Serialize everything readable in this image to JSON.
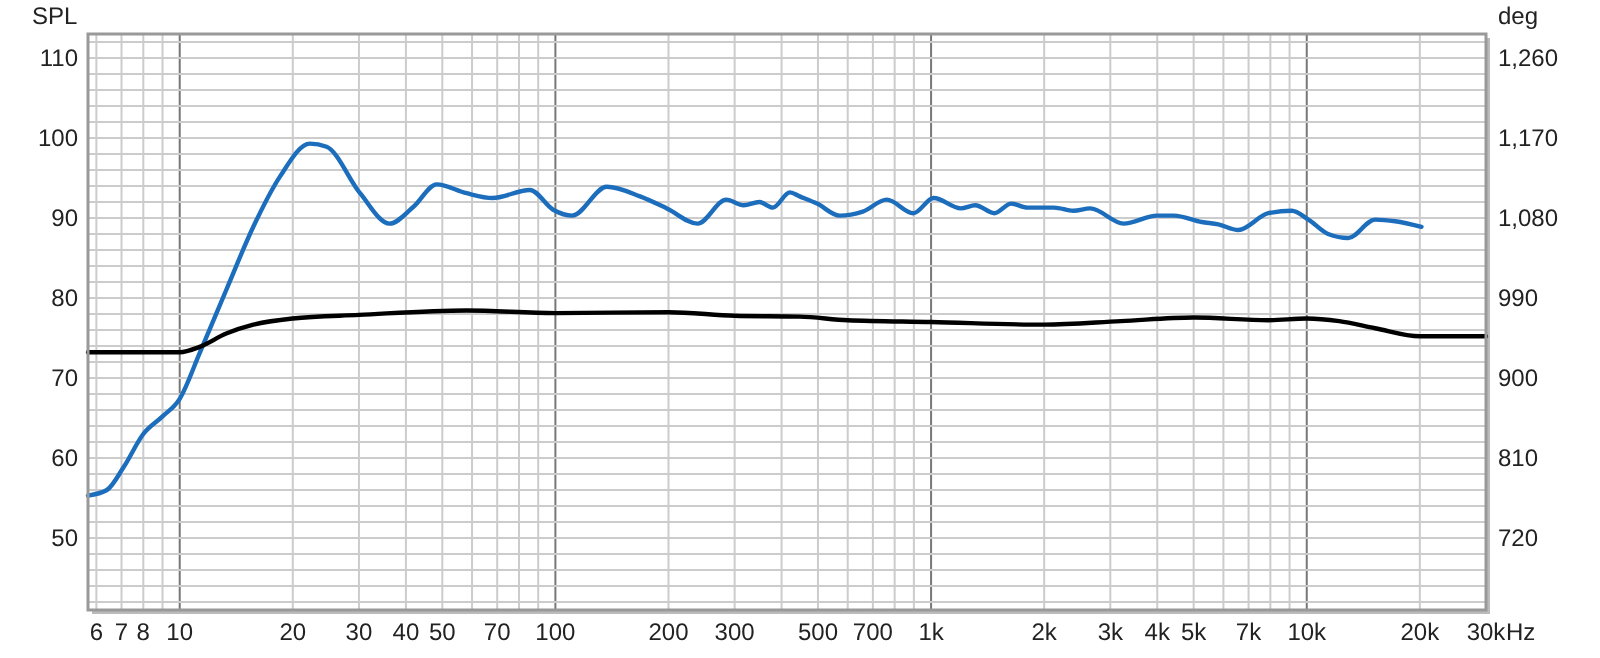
{
  "chart_data": {
    "type": "line",
    "ylabel": "SPL",
    "xlabel": "Hz",
    "y2label": "deg",
    "log": "x",
    "grid": true,
    "xlim": [
      5.7,
      30000
    ],
    "ylim": [
      41,
      113
    ],
    "y2lim": [
      639,
      1287
    ],
    "xticks": [
      6,
      7,
      8,
      {
        "value": 9,
        "label": null
      },
      10,
      20,
      30,
      40,
      50,
      {
        "value": 60,
        "label": null
      },
      70,
      {
        "value": 80,
        "label": null
      },
      {
        "value": 90,
        "label": null
      },
      100,
      200,
      300,
      {
        "value": 400,
        "label": null
      },
      500,
      {
        "value": 600,
        "label": null
      },
      700,
      {
        "value": 800,
        "label": null
      },
      {
        "value": 900,
        "label": null
      },
      {
        "value": 1000,
        "label": "1k"
      },
      {
        "value": 2000,
        "label": "2k"
      },
      {
        "value": 3000,
        "label": "3k"
      },
      {
        "value": 4000,
        "label": "4k"
      },
      {
        "value": 5000,
        "label": "5k"
      },
      {
        "value": 6000,
        "label": null
      },
      {
        "value": 7000,
        "label": "7k"
      },
      {
        "value": 8000,
        "label": null
      },
      {
        "value": 9000,
        "label": null
      },
      {
        "value": 10000,
        "label": "10k"
      },
      {
        "value": 20000,
        "label": "20k"
      },
      {
        "value": 30000,
        "label": "30k"
      }
    ],
    "yticks": [
      {
        "value": 42,
        "label": null
      },
      {
        "value": 44,
        "label": null
      },
      {
        "value": 46,
        "label": null
      },
      {
        "value": 48,
        "label": null
      },
      50,
      {
        "value": 52,
        "label": null
      },
      {
        "value": 54,
        "label": null
      },
      {
        "value": 56,
        "label": null
      },
      {
        "value": 58,
        "label": null
      },
      60,
      {
        "value": 62,
        "label": null
      },
      {
        "value": 64,
        "label": null
      },
      {
        "value": 66,
        "label": null
      },
      {
        "value": 68,
        "label": null
      },
      70,
      {
        "value": 72,
        "label": null
      },
      {
        "value": 74,
        "label": null
      },
      {
        "value": 76,
        "label": null
      },
      {
        "value": 78,
        "label": null
      },
      80,
      {
        "value": 82,
        "label": null
      },
      {
        "value": 84,
        "label": null
      },
      {
        "value": 86,
        "label": null
      },
      {
        "value": 88,
        "label": null
      },
      90,
      {
        "value": 92,
        "label": null
      },
      {
        "value": 94,
        "label": null
      },
      {
        "value": 96,
        "label": null
      },
      {
        "value": 98,
        "label": null
      },
      100,
      {
        "value": 102,
        "label": null
      },
      {
        "value": 104,
        "label": null
      },
      {
        "value": 106,
        "label": null
      },
      {
        "value": 108,
        "label": null
      },
      110,
      {
        "value": 112,
        "label": null
      }
    ],
    "y2ticks": [
      720,
      810,
      900,
      990,
      {
        "value": 1080,
        "label": "1,080"
      },
      {
        "value": 1170,
        "label": "1,170"
      },
      {
        "value": 1260,
        "label": "1,260"
      }
    ],
    "series": [
      {
        "color": "#1c6ebd",
        "x": [
          5.7,
          6.4,
          7.1,
          8,
          9,
          10,
          11.3,
          13.3,
          15.7,
          18.5,
          22.2,
          24.6,
          30.2,
          36.2,
          41.9,
          48.3,
          58,
          68,
          85.5,
          98.9,
          110.8,
          137,
          168,
          198,
          239,
          285,
          317,
          349,
          379,
          421,
          447,
          497,
          571,
          658,
          762,
          897,
          1016,
          1199,
          1311,
          1474,
          1634,
          1806,
          2125,
          2393,
          2652,
          3254,
          3995,
          4429,
          5256,
          5817,
          6575,
          7901,
          9122,
          10100,
          11400,
          12900,
          15200,
          17200,
          20200
        ],
        "values": [
          55.3,
          56,
          58.9,
          63,
          65.2,
          67.4,
          73.1,
          81,
          88.9,
          95.2,
          99.3,
          98.9,
          93.1,
          89.3,
          91.4,
          94.2,
          93.1,
          92.5,
          93.5,
          91,
          90.3,
          93.9,
          92.7,
          91.2,
          89.3,
          92.3,
          91.6,
          92,
          91.3,
          93.2,
          92.7,
          91.8,
          90.3,
          90.8,
          92.3,
          90.6,
          92.5,
          91.2,
          91.6,
          90.6,
          91.8,
          91.3,
          91.3,
          90.9,
          91.2,
          89.3,
          90.3,
          90.3,
          89.5,
          89.2,
          88.5,
          90.6,
          90.9,
          89.8,
          88,
          87.5,
          89.8,
          89.6,
          88.9
        ]
      },
      {
        "color": "#000000",
        "axis": "y2",
        "x": [
          5.7,
          10,
          11.3,
          13.3,
          15.7,
          20,
          30,
          58,
          100,
          200,
          300,
          447,
          600,
          1000,
          2000,
          3200,
          5000,
          7900,
          10000,
          12200,
          15200,
          20000,
          30000
        ],
        "values": [
          929,
          929,
          935,
          950,
          960,
          967,
          971,
          976,
          973,
          974,
          970,
          969,
          965,
          963,
          960,
          964,
          968,
          965,
          967,
          964,
          956,
          947,
          947
        ]
      }
    ]
  }
}
